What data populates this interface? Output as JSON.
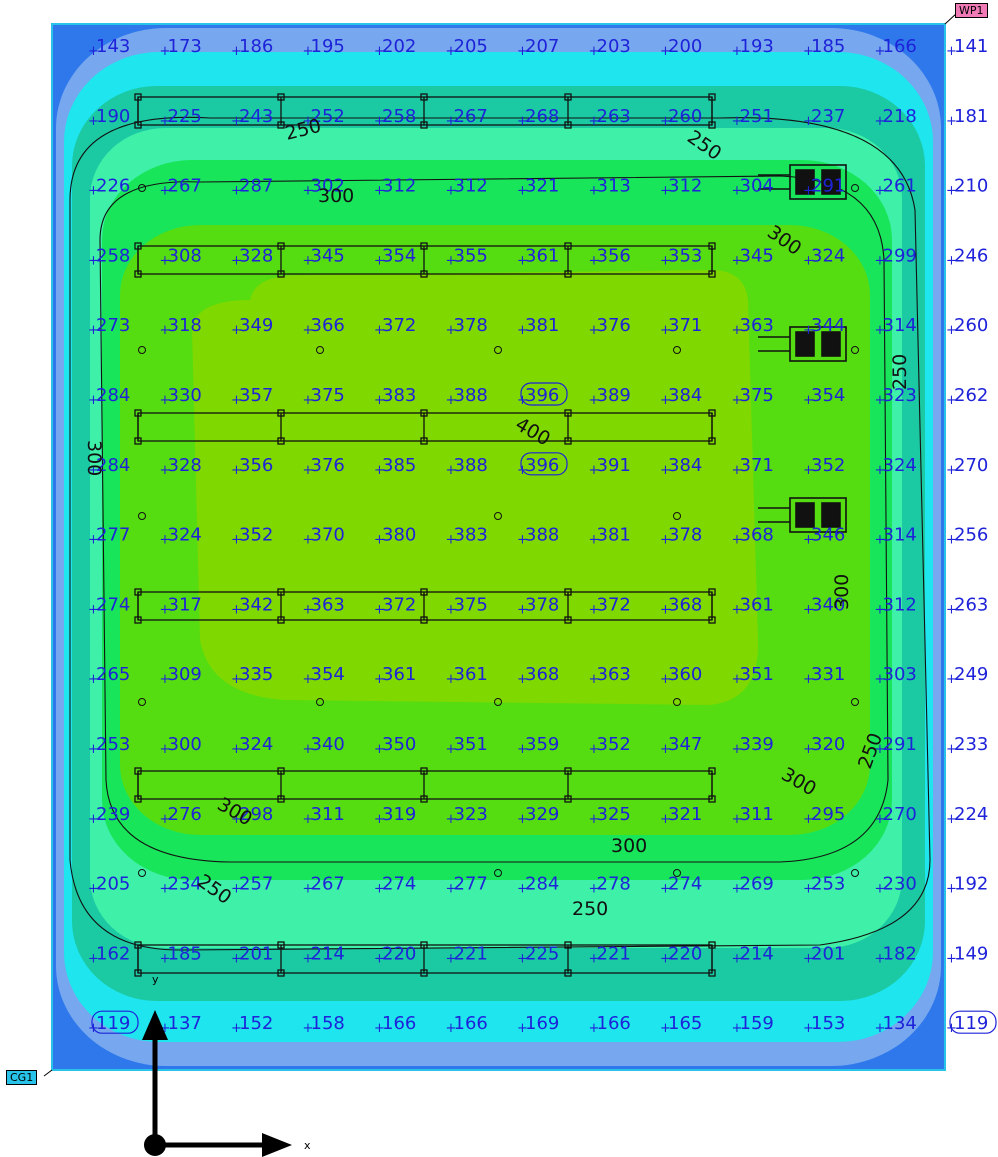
{
  "markers": {
    "wp": "WP1",
    "cg": "CG1"
  },
  "axes": {
    "x": "x",
    "y": "y"
  },
  "palette": {
    "band_lt150": "#2f78ec",
    "band_150_200": "#77a8ef",
    "band_200_250": "#1ee5ee",
    "band_250_275": "#1bc9a3",
    "band_275_300": "#3ff0a8",
    "band_300_350": "#19e55a",
    "band_350_375": "#55dd12",
    "band_gt375": "#7fd800",
    "text": "#1e22d8",
    "lines": "#111111",
    "frame": "#27c3e8"
  },
  "grid": {
    "rows": [
      [
        "143",
        "173",
        "186",
        "195",
        "202",
        "205",
        "207",
        "203",
        "200",
        "193",
        "185",
        "166",
        "141"
      ],
      [
        "190",
        "225",
        "243",
        "252",
        "258",
        "267",
        "268",
        "263",
        "260",
        "251",
        "237",
        "218",
        "181"
      ],
      [
        "226",
        "267",
        "287",
        "302",
        "312",
        "312",
        "321",
        "313",
        "312",
        "304",
        "291",
        "261",
        "210"
      ],
      [
        "258",
        "308",
        "328",
        "345",
        "354",
        "355",
        "361",
        "356",
        "353",
        "345",
        "324",
        "299",
        "246"
      ],
      [
        "273",
        "318",
        "349",
        "366",
        "372",
        "378",
        "381",
        "376",
        "371",
        "363",
        "344",
        "314",
        "260"
      ],
      [
        "284",
        "330",
        "357",
        "375",
        "383",
        "388",
        "396",
        "389",
        "384",
        "375",
        "354",
        "323",
        "262"
      ],
      [
        "284",
        "328",
        "356",
        "376",
        "385",
        "388",
        "396",
        "391",
        "384",
        "371",
        "352",
        "324",
        "270"
      ],
      [
        "277",
        "324",
        "352",
        "370",
        "380",
        "383",
        "388",
        "381",
        "378",
        "368",
        "346",
        "314",
        "256"
      ],
      [
        "274",
        "317",
        "342",
        "363",
        "372",
        "375",
        "378",
        "372",
        "368",
        "361",
        "340",
        "312",
        "263"
      ],
      [
        "265",
        "309",
        "335",
        "354",
        "361",
        "361",
        "368",
        "363",
        "360",
        "351",
        "331",
        "303",
        "249"
      ],
      [
        "253",
        "300",
        "324",
        "340",
        "350",
        "351",
        "359",
        "352",
        "347",
        "339",
        "320",
        "291",
        "233"
      ],
      [
        "239",
        "276",
        "298",
        "311",
        "319",
        "323",
        "329",
        "325",
        "321",
        "311",
        "295",
        "270",
        "224"
      ],
      [
        "205",
        "234",
        "257",
        "267",
        "274",
        "277",
        "284",
        "278",
        "274",
        "269",
        "253",
        "230",
        "192"
      ],
      [
        "162",
        "185",
        "201",
        "214",
        "220",
        "221",
        "225",
        "221",
        "220",
        "214",
        "201",
        "182",
        "149"
      ],
      [
        "119",
        "137",
        "152",
        "158",
        "166",
        "166",
        "169",
        "166",
        "165",
        "159",
        "153",
        "134",
        "119"
      ]
    ],
    "circled": [
      [
        5,
        6
      ],
      [
        6,
        6
      ],
      [
        14,
        0
      ],
      [
        14,
        12
      ]
    ]
  },
  "contour_labels": [
    "250",
    "250",
    "300",
    "300",
    "250",
    "300",
    "400",
    "300",
    "250",
    "300",
    "300",
    "250",
    "300",
    "250"
  ]
}
